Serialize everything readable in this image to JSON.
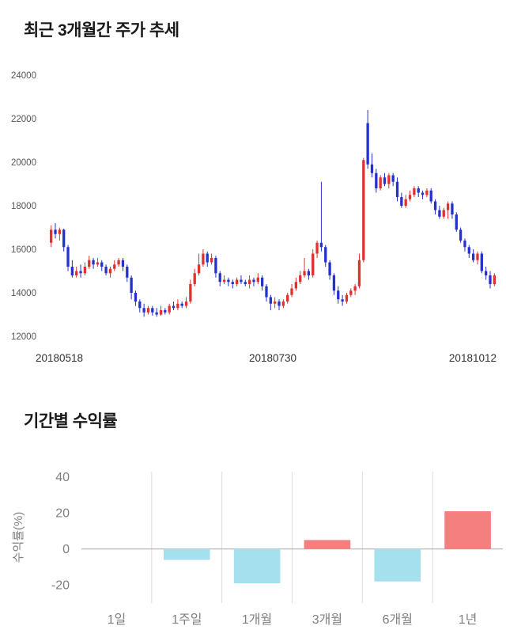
{
  "chart_data": [
    {
      "type": "candlestick",
      "title": "최근 3개월간 주가 추세",
      "ylim": [
        12000,
        24000
      ],
      "yticks": [
        24000,
        22000,
        20000,
        18000,
        16000,
        14000,
        12000
      ],
      "xtick_labels": [
        "20180518",
        "20180730",
        "20181012"
      ],
      "up_color": "#e03131",
      "down_color": "#2531cc",
      "axis_text_color": "#555555",
      "xaxis_text_color": "#333333",
      "candles": [
        [
          16300,
          17100,
          16100,
          16900
        ],
        [
          16900,
          17200,
          16500,
          16700
        ],
        [
          16700,
          17000,
          16400,
          16900
        ],
        [
          16900,
          16950,
          15900,
          16100
        ],
        [
          16100,
          16200,
          15000,
          15200
        ],
        [
          15200,
          15500,
          14700,
          14800
        ],
        [
          14800,
          15200,
          14700,
          15000
        ],
        [
          15000,
          15300,
          14700,
          14900
        ],
        [
          14900,
          15400,
          14800,
          15200
        ],
        [
          15200,
          15700,
          15100,
          15500
        ],
        [
          15500,
          15600,
          15100,
          15300
        ],
        [
          15300,
          15600,
          15200,
          15400
        ],
        [
          15400,
          15500,
          15000,
          15200
        ],
        [
          15200,
          15300,
          14800,
          14900
        ],
        [
          14900,
          15200,
          14700,
          15100
        ],
        [
          15100,
          15500,
          15000,
          15300
        ],
        [
          15300,
          15600,
          15200,
          15500
        ],
        [
          15500,
          15600,
          15000,
          15200
        ],
        [
          15200,
          15300,
          14500,
          14700
        ],
        [
          14700,
          14800,
          13700,
          14000
        ],
        [
          14000,
          14100,
          13400,
          13600
        ],
        [
          13600,
          13700,
          13100,
          13300
        ],
        [
          13300,
          13500,
          12900,
          13100
        ],
        [
          13100,
          13400,
          13000,
          13300
        ],
        [
          13300,
          13400,
          12950,
          13100
        ],
        [
          13100,
          13300,
          12900,
          13000
        ],
        [
          13000,
          13400,
          12950,
          13200
        ],
        [
          13200,
          13300,
          13000,
          13100
        ],
        [
          13100,
          13500,
          13000,
          13400
        ],
        [
          13400,
          13600,
          13200,
          13300
        ],
        [
          13300,
          13700,
          13200,
          13500
        ],
        [
          13500,
          13600,
          13300,
          13400
        ],
        [
          13400,
          13800,
          13300,
          13600
        ],
        [
          13600,
          14600,
          13500,
          14400
        ],
        [
          14400,
          15100,
          14300,
          14900
        ],
        [
          14900,
          15800,
          14800,
          15300
        ],
        [
          15300,
          16000,
          15200,
          15800
        ],
        [
          15800,
          15900,
          15200,
          15400
        ],
        [
          15400,
          15800,
          15300,
          15600
        ],
        [
          15600,
          15700,
          14700,
          14900
        ],
        [
          14900,
          15000,
          14300,
          14500
        ],
        [
          14500,
          14800,
          14400,
          14600
        ],
        [
          14600,
          14700,
          14300,
          14500
        ],
        [
          14500,
          14600,
          14200,
          14400
        ],
        [
          14400,
          14700,
          14300,
          14600
        ],
        [
          14600,
          14800,
          14400,
          14500
        ],
        [
          14500,
          14600,
          14300,
          14400
        ],
        [
          14400,
          14800,
          14200,
          14600
        ],
        [
          14600,
          14700,
          14300,
          14500
        ],
        [
          14500,
          14900,
          14400,
          14700
        ],
        [
          14700,
          14800,
          14100,
          14300
        ],
        [
          14300,
          14400,
          13600,
          13800
        ],
        [
          13800,
          13900,
          13200,
          13500
        ],
        [
          13500,
          13800,
          13300,
          13600
        ],
        [
          13600,
          13700,
          13200,
          13400
        ],
        [
          13400,
          13700,
          13300,
          13600
        ],
        [
          13600,
          14000,
          13500,
          13900
        ],
        [
          13900,
          14400,
          13800,
          14200
        ],
        [
          14200,
          14700,
          14100,
          14500
        ],
        [
          14500,
          15000,
          14400,
          14800
        ],
        [
          14800,
          15600,
          14700,
          15000
        ],
        [
          15000,
          15100,
          14600,
          14800
        ],
        [
          14800,
          16000,
          14700,
          15800
        ],
        [
          15800,
          16400,
          15600,
          16300
        ],
        [
          16300,
          19100,
          15900,
          16100
        ],
        [
          16100,
          16200,
          15200,
          15400
        ],
        [
          15400,
          15500,
          14600,
          14800
        ],
        [
          14800,
          14900,
          13900,
          14100
        ],
        [
          14100,
          14300,
          13500,
          13700
        ],
        [
          13700,
          13900,
          13400,
          13600
        ],
        [
          13600,
          14000,
          13500,
          13900
        ],
        [
          13900,
          14200,
          13800,
          14100
        ],
        [
          14100,
          14400,
          13900,
          14300
        ],
        [
          14300,
          15800,
          14200,
          15500
        ],
        [
          15500,
          20200,
          15400,
          20100
        ],
        [
          21800,
          22400,
          19700,
          19900
        ],
        [
          19900,
          20400,
          19300,
          19500
        ],
        [
          19500,
          19700,
          18600,
          18800
        ],
        [
          18800,
          19400,
          18700,
          19300
        ],
        [
          19300,
          19500,
          18900,
          19000
        ],
        [
          19000,
          19500,
          18800,
          19400
        ],
        [
          19400,
          19500,
          18900,
          19100
        ],
        [
          19100,
          19300,
          18200,
          18400
        ],
        [
          18400,
          18600,
          17900,
          18000
        ],
        [
          18000,
          18500,
          17900,
          18300
        ],
        [
          18300,
          18700,
          18200,
          18500
        ],
        [
          18500,
          18900,
          18400,
          18800
        ],
        [
          18800,
          18900,
          18400,
          18600
        ],
        [
          18600,
          18700,
          18300,
          18500
        ],
        [
          18500,
          18800,
          18400,
          18700
        ],
        [
          18700,
          18800,
          18100,
          18200
        ],
        [
          18200,
          18300,
          17600,
          17800
        ],
        [
          17800,
          18000,
          17400,
          17500
        ],
        [
          17500,
          17900,
          17400,
          17800
        ],
        [
          17800,
          18200,
          17400,
          18100
        ],
        [
          18100,
          18200,
          17400,
          17600
        ],
        [
          17600,
          17700,
          16800,
          16900
        ],
        [
          16900,
          17000,
          16300,
          16400
        ],
        [
          16400,
          16500,
          15900,
          16100
        ],
        [
          16100,
          16200,
          15600,
          15800
        ],
        [
          15800,
          16000,
          15400,
          15500
        ],
        [
          15500,
          15900,
          15300,
          15800
        ],
        [
          15800,
          15900,
          14900,
          15000
        ],
        [
          15000,
          15200,
          14600,
          14800
        ],
        [
          14800,
          15000,
          14200,
          14400
        ],
        [
          14400,
          14900,
          14300,
          14800
        ]
      ]
    },
    {
      "type": "bar",
      "title": "기간별 수익률",
      "categories": [
        "1일",
        "1주일",
        "1개월",
        "3개월",
        "6개월",
        "1년"
      ],
      "values": [
        0,
        -6,
        -19,
        5,
        -18,
        21
      ],
      "ylabel": "수익률(%)",
      "yticks": [
        40,
        20,
        0,
        -20
      ],
      "ylim": [
        -30,
        43
      ],
      "positive_color": "#f47f7f",
      "negative_color": "#a5e0ef",
      "grid_color": "#dddddd",
      "zero_line_color": "#aaaaaa",
      "axis_text_color": "#808080"
    }
  ]
}
